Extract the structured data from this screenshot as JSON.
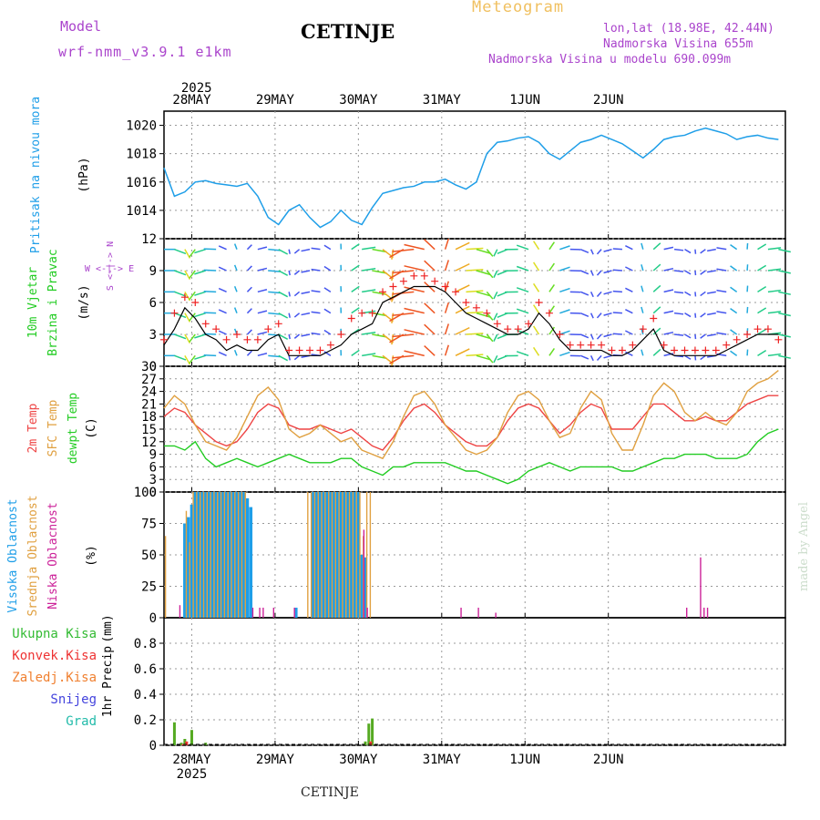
{
  "header": {
    "model_label": "Model",
    "model_name": "wrf-nmm_v3.9.1 e1km",
    "station": "CETINJE",
    "title": "Meteogram",
    "lonlat": "lon,lat (18.98E, 42.44N)",
    "elevation": "Nadmorska Visina 655m",
    "model_elevation": "Nadmorska Visina u modelu 690.099m",
    "footer_station": "CETINJE",
    "watermark": "made by Angel"
  },
  "colors": {
    "pressure": "#1e9ee8",
    "temp2m": "#ee4444",
    "sfc": "#e0a040",
    "dewpt": "#22cc22",
    "high_cloud": "#1e9ee8",
    "mid_cloud": "#e0a040",
    "low_cloud": "#cc2299",
    "total_precip": "#55aa22",
    "conv_precip": "#ee3333",
    "wind_speed": "#000000",
    "gust": "#ee2222",
    "violet": "#aa44cc"
  },
  "axes": {
    "top_year": "2025",
    "bottom_year": "2025",
    "days": [
      "28MAY",
      "29MAY",
      "30MAY",
      "31MAY",
      "1JUN",
      "2JUN"
    ]
  },
  "chart_data": [
    {
      "type": "line",
      "panel": "pressure",
      "ylabel": "Pritisak na nivou mora",
      "unit": "(hPa)",
      "ylim": [
        1012,
        1021
      ],
      "yticks": [
        1014,
        1016,
        1018,
        1020
      ],
      "x_hours": [
        0,
        3,
        6,
        9,
        12,
        15,
        18,
        21,
        24,
        27,
        30,
        33,
        36,
        39,
        42,
        45,
        48,
        51,
        54,
        57,
        60,
        63,
        66,
        69,
        72,
        75,
        78,
        81,
        84,
        87,
        90,
        93,
        96,
        99,
        102,
        105,
        108,
        111,
        114,
        117,
        120,
        123,
        126,
        129,
        132,
        135,
        138,
        141,
        144,
        147,
        150,
        153,
        156,
        159,
        162,
        165,
        168,
        171,
        174,
        177
      ],
      "values": [
        1017.0,
        1015.0,
        1015.3,
        1016.0,
        1016.1,
        1015.9,
        1015.8,
        1015.7,
        1015.9,
        1015.0,
        1013.5,
        1013.0,
        1014.0,
        1014.4,
        1013.5,
        1012.8,
        1013.2,
        1014.0,
        1013.3,
        1013.0,
        1014.2,
        1015.2,
        1015.4,
        1015.6,
        1015.7,
        1016.0,
        1016.0,
        1016.2,
        1015.8,
        1015.5,
        1016.0,
        1018.0,
        1018.8,
        1018.9,
        1019.1,
        1019.2,
        1018.8,
        1018.0,
        1017.6,
        1018.2,
        1018.8,
        1019.0,
        1019.3,
        1019.0,
        1018.7,
        1018.2,
        1017.7,
        1018.3,
        1019.0,
        1019.2,
        1019.3,
        1019.6,
        1019.8,
        1019.6,
        1019.4,
        1019.0,
        1019.2,
        1019.3,
        1019.1,
        1019.0
      ]
    },
    {
      "type": "line",
      "panel": "wind",
      "ylabel": "10m Vjetar Brzina i Pravac",
      "unit": "(m/s)",
      "ylim": [
        0,
        12
      ],
      "yticks": [
        0,
        3,
        6,
        9,
        12
      ],
      "compass": "W <-|-> E",
      "compass_v": "S <-|-> N",
      "x_hours": [
        0,
        3,
        6,
        9,
        12,
        15,
        18,
        21,
        24,
        27,
        30,
        33,
        36,
        39,
        42,
        45,
        48,
        51,
        54,
        57,
        60,
        63,
        66,
        69,
        72,
        75,
        78,
        81,
        84,
        87,
        90,
        93,
        96,
        99,
        102,
        105,
        108,
        111,
        114,
        117,
        120,
        123,
        126,
        129,
        132,
        135,
        138,
        141,
        144,
        147,
        150,
        153,
        156,
        159,
        162,
        165,
        168,
        171,
        174,
        177
      ],
      "values": [
        2.0,
        3.5,
        5.5,
        4.5,
        3.0,
        2.5,
        1.5,
        2.0,
        1.5,
        1.5,
        2.5,
        3.0,
        1.0,
        1.0,
        1.0,
        1.0,
        1.5,
        2.0,
        3.0,
        3.5,
        4.0,
        6.0,
        6.5,
        7.0,
        7.5,
        7.5,
        7.5,
        7.0,
        6.0,
        5.0,
        4.5,
        4.0,
        3.5,
        3.0,
        3.0,
        3.5,
        5.0,
        4.0,
        2.5,
        1.5,
        1.5,
        1.5,
        1.5,
        1.0,
        1.0,
        1.5,
        2.5,
        3.5,
        1.5,
        1.0,
        1.0,
        1.0,
        1.0,
        1.0,
        1.5,
        2.0,
        2.5,
        3.0,
        3.0,
        3.0
      ],
      "gusts": [
        2.5,
        5.0,
        6.5,
        6.0,
        4.0,
        3.5,
        2.5,
        3.0,
        2.5,
        2.5,
        3.5,
        4.0,
        1.5,
        1.5,
        1.5,
        1.5,
        2.0,
        3.0,
        4.5,
        5.0,
        5.0,
        7.0,
        7.5,
        8.0,
        8.5,
        8.5,
        8.0,
        7.5,
        7.0,
        6.0,
        5.5,
        5.0,
        4.0,
        3.5,
        3.5,
        4.0,
        6.0,
        5.0,
        3.0,
        2.0,
        2.0,
        2.0,
        2.0,
        1.5,
        1.5,
        2.0,
        3.5,
        4.5,
        2.0,
        1.5,
        1.5,
        1.5,
        1.5,
        1.5,
        2.0,
        2.5,
        3.0,
        3.5,
        3.5,
        2.5
      ]
    },
    {
      "type": "line",
      "panel": "temperature",
      "ylabel": [
        "2m Temp",
        "SFC Temp",
        "dewpt Temp"
      ],
      "unit": "(C)",
      "ylim": [
        0,
        30
      ],
      "yticks": [
        0,
        3,
        6,
        9,
        12,
        15,
        18,
        21,
        24,
        27,
        30
      ],
      "x_hours": [
        0,
        3,
        6,
        9,
        12,
        15,
        18,
        21,
        24,
        27,
        30,
        33,
        36,
        39,
        42,
        45,
        48,
        51,
        54,
        57,
        60,
        63,
        66,
        69,
        72,
        75,
        78,
        81,
        84,
        87,
        90,
        93,
        96,
        99,
        102,
        105,
        108,
        111,
        114,
        117,
        120,
        123,
        126,
        129,
        132,
        135,
        138,
        141,
        144,
        147,
        150,
        153,
        156,
        159,
        162,
        165,
        168,
        171,
        174,
        177
      ],
      "series": [
        {
          "name": "2m Temp",
          "values": [
            18,
            20,
            19,
            16,
            14,
            12,
            11,
            12,
            15,
            19,
            21,
            20,
            16,
            15,
            15,
            16,
            15,
            14,
            15,
            13,
            11,
            10,
            13,
            17,
            20,
            21,
            19,
            16,
            14,
            12,
            11,
            11,
            13,
            17,
            20,
            21,
            20,
            17,
            14,
            16,
            19,
            21,
            20,
            15,
            15,
            15,
            18,
            21,
            21,
            19,
            17,
            17,
            18,
            17,
            17,
            19,
            21,
            22,
            23,
            23
          ]
        },
        {
          "name": "SFC Temp",
          "values": [
            20,
            23,
            21,
            16,
            12,
            11,
            10,
            13,
            18,
            23,
            25,
            22,
            15,
            13,
            14,
            16,
            14,
            12,
            13,
            10,
            9,
            8,
            12,
            18,
            23,
            24,
            21,
            16,
            13,
            10,
            9,
            10,
            13,
            19,
            23,
            24,
            22,
            17,
            13,
            14,
            20,
            24,
            22,
            14,
            10,
            10,
            16,
            23,
            26,
            24,
            19,
            17,
            19,
            17,
            16,
            19,
            24,
            26,
            27,
            29
          ]
        },
        {
          "name": "dewpt Temp",
          "values": [
            11,
            11,
            10,
            12,
            8,
            6,
            7,
            8,
            7,
            6,
            7,
            8,
            9,
            8,
            7,
            7,
            7,
            8,
            8,
            6,
            5,
            4,
            6,
            6,
            7,
            7,
            7,
            7,
            6,
            5,
            5,
            4,
            3,
            2,
            3,
            5,
            6,
            7,
            6,
            5,
            6,
            6,
            6,
            6,
            5,
            5,
            6,
            7,
            8,
            8,
            9,
            9,
            9,
            8,
            8,
            8,
            9,
            12,
            14,
            15
          ]
        }
      ]
    },
    {
      "type": "bar",
      "panel": "cloud",
      "ylabel": [
        "Visoka Oblacnost",
        "Srednja Oblacnost",
        "Niska Oblacnost"
      ],
      "unit": "(%)",
      "ylim": [
        0,
        100
      ],
      "yticks": [
        0,
        25,
        50,
        75,
        100
      ],
      "series": [
        {
          "name": "Visoka Oblacnost",
          "x_hours": [
            6,
            7,
            8,
            9,
            10,
            11,
            12,
            13,
            14,
            15,
            16,
            17,
            18,
            19,
            20,
            21,
            22,
            23,
            24,
            25,
            38,
            43,
            44,
            45,
            46,
            47,
            48,
            49,
            50,
            51,
            52,
            53,
            54,
            55,
            56,
            57,
            58
          ],
          "values": [
            75,
            80,
            90,
            100,
            100,
            100,
            100,
            100,
            100,
            100,
            100,
            100,
            100,
            100,
            100,
            100,
            100,
            100,
            95,
            88,
            8,
            100,
            100,
            100,
            100,
            100,
            100,
            100,
            100,
            100,
            100,
            100,
            100,
            100,
            100,
            50,
            48
          ]
        },
        {
          "name": "Srednja Oblacnost",
          "x_hours": [
            1,
            7,
            8,
            9,
            10,
            11,
            12,
            13,
            14,
            15,
            16,
            17,
            18,
            19,
            20,
            21,
            22,
            23,
            24,
            42,
            43,
            44,
            45,
            46,
            47,
            48,
            49,
            50,
            51,
            52,
            53,
            54,
            55,
            56,
            57,
            58,
            59,
            60
          ],
          "values": [
            65,
            85,
            60,
            100,
            100,
            100,
            100,
            100,
            100,
            100,
            100,
            100,
            100,
            100,
            100,
            100,
            100,
            100,
            100,
            100,
            100,
            100,
            100,
            100,
            100,
            100,
            100,
            100,
            100,
            100,
            100,
            100,
            100,
            100,
            100,
            65,
            100,
            100
          ]
        },
        {
          "name": "Niska Oblacnost",
          "x_hours": [
            4,
            25,
            27,
            28,
            31,
            37,
            57,
            58,
            85,
            90,
            95,
            150,
            154,
            155,
            156
          ],
          "values": [
            10,
            8,
            8,
            8,
            8,
            8,
            70,
            8,
            8,
            8,
            4,
            8,
            48,
            8,
            8
          ]
        }
      ]
    },
    {
      "type": "bar",
      "panel": "precip",
      "ylabel": "1hr Precip",
      "unit": "(mm)",
      "legend": [
        "Ukupna Kisa",
        "Konvek.Kisa",
        "Zaledj.Kisa",
        "Snijeg",
        "Grad"
      ],
      "ylim": [
        0,
        1.0
      ],
      "yticks": [
        0,
        0.2,
        0.4,
        0.6,
        0.8
      ],
      "series": [
        {
          "name": "Ukupna Kisa",
          "x_hours": [
            3,
            5,
            6,
            8,
            12,
            58,
            59,
            60
          ],
          "values": [
            0.18,
            0.02,
            0.05,
            0.12,
            0.02,
            0.03,
            0.17,
            0.21
          ]
        },
        {
          "name": "Konvek.Kisa",
          "x_hours": [
            5,
            6,
            59
          ],
          "values": [
            0.01,
            0.03,
            0.03
          ]
        }
      ]
    }
  ]
}
